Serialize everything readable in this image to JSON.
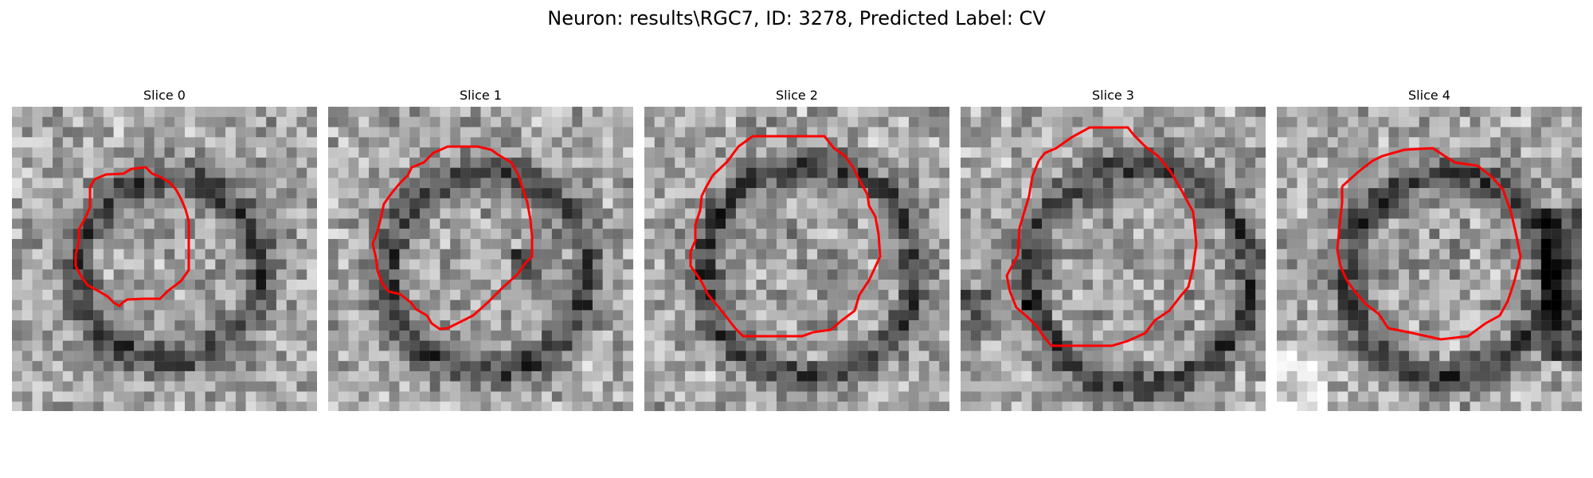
{
  "figure": {
    "title": "Neuron: results\\RGC7, ID: 3278, Predicted Label: CV"
  },
  "panels": [
    {
      "title": "Slice 0",
      "image": "grayscale-microscopy-slice",
      "contour_color": "#ff0000"
    },
    {
      "title": "Slice 1",
      "image": "grayscale-microscopy-slice",
      "contour_color": "#ff0000"
    },
    {
      "title": "Slice 2",
      "image": "grayscale-microscopy-slice",
      "contour_color": "#ff0000"
    },
    {
      "title": "Slice 3",
      "image": "grayscale-microscopy-slice",
      "contour_color": "#ff0000"
    },
    {
      "title": "Slice 4",
      "image": "grayscale-microscopy-slice",
      "contour_color": "#ff0000"
    }
  ]
}
